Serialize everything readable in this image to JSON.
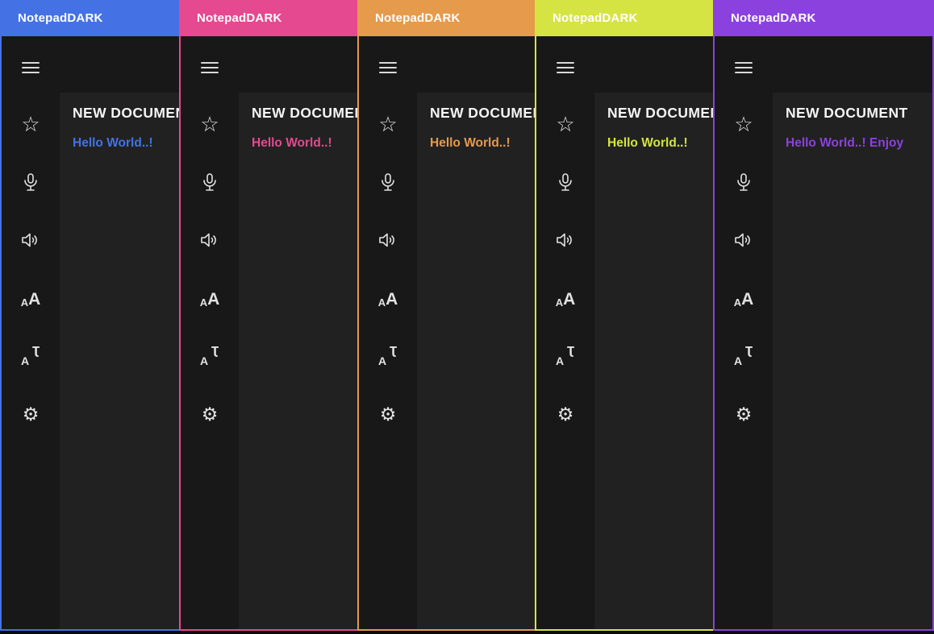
{
  "app_title": "NotepadDARK",
  "colors": {
    "page_bg": "#0A0A0A",
    "sidebar_bg": "#181818",
    "content_bg": "#212121",
    "titlebar_text": "#FFFFFF",
    "heading_text": "#F5F5F5",
    "icon_color": "#E2E2E2"
  },
  "sidebar_icons": [
    "hamburger-menu-icon",
    "star-icon",
    "microphone-icon",
    "speaker-icon",
    "font-size-icon",
    "translate-icon",
    "gear-icon"
  ],
  "windows": [
    {
      "theme": "blue",
      "accent": "#4472E4",
      "title": "NotepadDARK",
      "document_title": "NEW DOCUMENT",
      "document_text": "Hello World..!"
    },
    {
      "theme": "pink",
      "accent": "#E5498F",
      "title": "NotepadDARK",
      "document_title": "NEW DOCUMENT",
      "document_text": "Hello World..!"
    },
    {
      "theme": "orange",
      "accent": "#E69A4B",
      "title": "NotepadDARK",
      "document_title": "NEW DOCUMENT",
      "document_text": "Hello World..!"
    },
    {
      "theme": "lime",
      "accent": "#D5E442",
      "title": "NotepadDARK",
      "document_title": "NEW DOCUMENT",
      "document_text": "Hello World..!"
    },
    {
      "theme": "purple",
      "accent": "#8B41DE",
      "title": "NotepadDARK",
      "document_title": "NEW DOCUMENT",
      "document_text": "Hello World..! Enjoy"
    }
  ]
}
